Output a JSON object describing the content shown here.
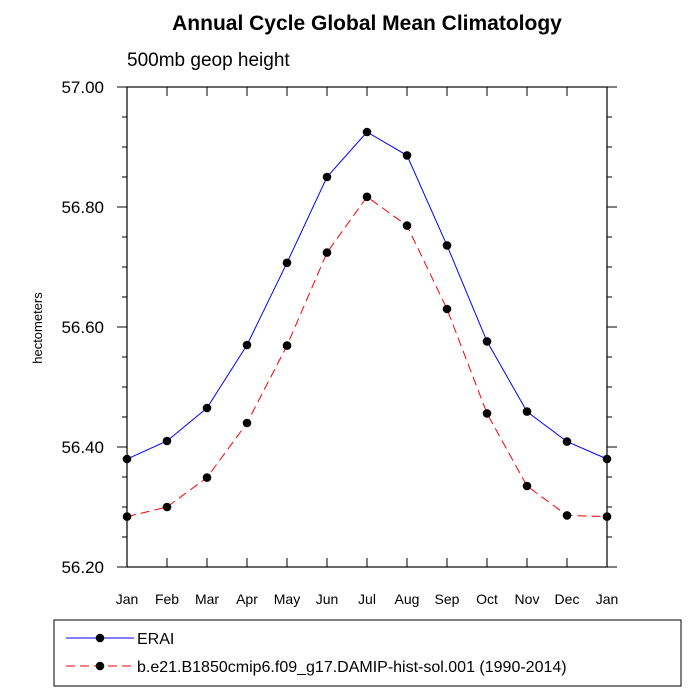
{
  "chart_data": {
    "type": "line",
    "title": "Annual Cycle Global Mean Climatology",
    "subtitle": "500mb geop height",
    "xlabel": "",
    "ylabel": "hectometers",
    "categories": [
      "Jan",
      "Feb",
      "Mar",
      "Apr",
      "May",
      "Jun",
      "Jul",
      "Aug",
      "Sep",
      "Oct",
      "Nov",
      "Dec",
      "Jan"
    ],
    "ylim": [
      56.2,
      57.0
    ],
    "yticks": [
      "56.20",
      "56.40",
      "56.60",
      "56.80",
      "57.00"
    ],
    "grid": false,
    "legend_position": "bottom",
    "series": [
      {
        "name": "ERAI",
        "color": "#0000ff",
        "line_style": "solid",
        "marker": "filled-circle",
        "values": [
          56.38,
          56.41,
          56.465,
          56.57,
          56.707,
          56.85,
          56.925,
          56.886,
          56.736,
          56.576,
          56.459,
          56.409,
          56.38
        ]
      },
      {
        "name": "b.e21.B1850cmip6.f09_g17.DAMIP-hist-sol.001 (1990-2014)",
        "color": "#ff0000",
        "line_style": "dashed",
        "marker": "filled-circle",
        "values": [
          56.284,
          56.3,
          56.349,
          56.44,
          56.569,
          56.724,
          56.817,
          56.769,
          56.63,
          56.456,
          56.335,
          56.286,
          56.284
        ]
      }
    ]
  }
}
